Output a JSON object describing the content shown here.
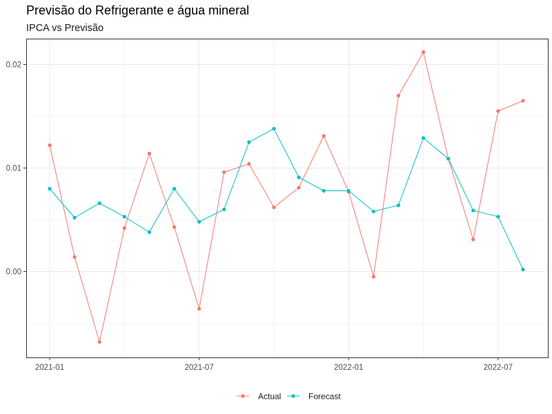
{
  "chart_data": {
    "type": "line",
    "title": "Previsão do Refrigerante e água mineral",
    "subtitle": "IPCA vs Previsão",
    "xlabel": "",
    "ylabel": "",
    "x_ticks": [
      "2021-01",
      "2021-07",
      "2022-01",
      "2022-07"
    ],
    "y_ticks": [
      "0.00",
      "0.01",
      "0.02"
    ],
    "ylim": [
      -0.0083,
      0.0225
    ],
    "grid": true,
    "legend_position": "bottom",
    "x": [
      "2021-01",
      "2021-02",
      "2021-03",
      "2021-04",
      "2021-05",
      "2021-06",
      "2021-07",
      "2021-08",
      "2021-09",
      "2021-10",
      "2021-11",
      "2021-12",
      "2022-01",
      "2022-02",
      "2022-03",
      "2022-04",
      "2022-05",
      "2022-06",
      "2022-07",
      "2022-08"
    ],
    "series": [
      {
        "name": "Actual",
        "color": "#f8766d",
        "values": [
          0.0122,
          0.0014,
          -0.0068,
          0.0042,
          0.0114,
          0.0043,
          -0.0036,
          0.0096,
          0.0104,
          0.0062,
          0.0081,
          0.0131,
          0.0077,
          -0.0005,
          0.017,
          0.0212,
          0.0109,
          0.0031,
          0.0155,
          0.0165
        ]
      },
      {
        "name": "Forecast",
        "color": "#00bfc4",
        "values": [
          0.008,
          0.0052,
          0.0066,
          0.0053,
          0.0038,
          0.008,
          0.0048,
          0.006,
          0.0125,
          0.0138,
          0.0091,
          0.0078,
          0.0078,
          0.0058,
          0.0064,
          0.0129,
          0.0109,
          0.0059,
          0.0053,
          0.0002
        ]
      }
    ]
  }
}
